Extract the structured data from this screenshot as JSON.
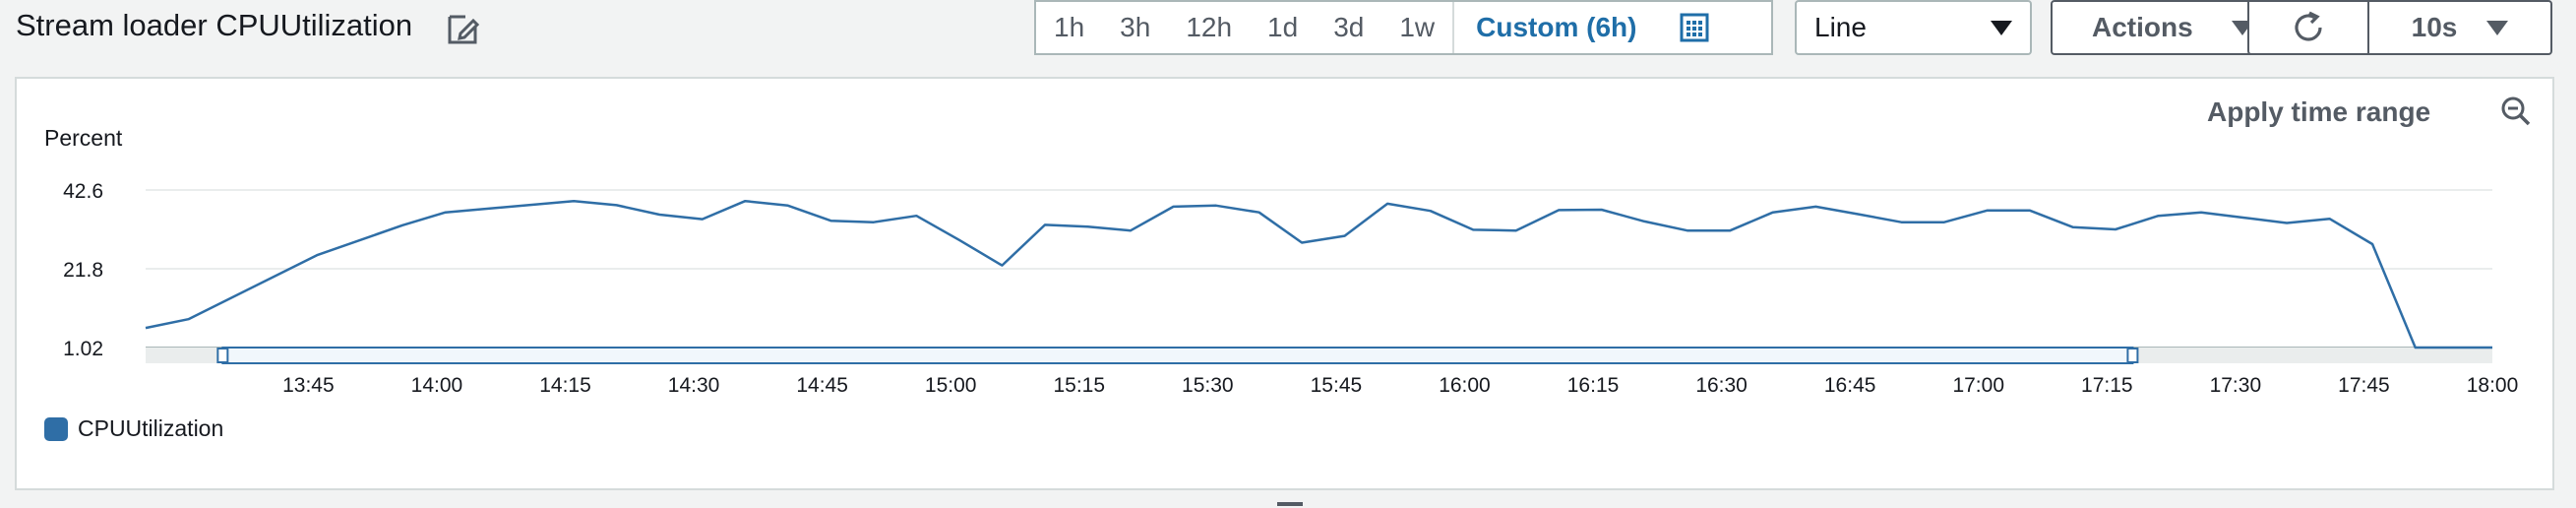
{
  "widget": {
    "title": "Stream loader CPUUtilization"
  },
  "time_range": {
    "options": [
      "1h",
      "3h",
      "12h",
      "1d",
      "3d",
      "1w"
    ],
    "custom_label": "Custom (6h)",
    "selected": "Custom (6h)"
  },
  "toolbar": {
    "chart_type_value": "Line",
    "actions_label": "Actions",
    "refresh_interval_value": "10s"
  },
  "panel": {
    "apply_range_label": "Apply time range"
  },
  "icons": {
    "edit": "edit-icon",
    "calendar": "calendar-icon",
    "refresh": "refresh-icon",
    "zoom_out": "zoom-out-icon",
    "dropdown": "caret-down-icon"
  },
  "colors": {
    "series": "#2f6ea6",
    "accent": "#1f6ea8",
    "selection": "#2f6ea6"
  },
  "chart_data": {
    "type": "line",
    "ylabel": "Percent",
    "y_ticks": [
      "42.6",
      "21.8",
      "1.02"
    ],
    "ylim": [
      1.02,
      42.6
    ],
    "xlim": [
      "13:26",
      "18:00"
    ],
    "x_ticks": [
      "13:45",
      "14:00",
      "14:15",
      "14:30",
      "14:45",
      "15:00",
      "15:15",
      "15:30",
      "15:45",
      "16:00",
      "16:15",
      "16:30",
      "16:45",
      "17:00",
      "17:15",
      "17:30",
      "17:45",
      "18:00"
    ],
    "legend_position": "bottom-left",
    "grid": true,
    "selection_range": [
      "13:35",
      "17:18"
    ],
    "series": [
      {
        "name": "CPUUtilization",
        "x": [
          "13:26",
          "13:31",
          "13:46",
          "13:56",
          "14:01",
          "14:16",
          "14:21",
          "14:26",
          "14:31",
          "14:36",
          "14:41",
          "14:46",
          "14:51",
          "14:56",
          "15:01",
          "15:06",
          "15:11",
          "15:16",
          "15:21",
          "15:26",
          "15:31",
          "15:36",
          "15:41",
          "15:46",
          "15:51",
          "15:56",
          "16:01",
          "16:06",
          "16:11",
          "16:16",
          "16:21",
          "16:26",
          "16:31",
          "16:36",
          "16:41",
          "16:46",
          "16:51",
          "16:56",
          "17:01",
          "17:06",
          "17:11",
          "17:16",
          "17:21",
          "17:26",
          "17:31",
          "17:36",
          "17:41",
          "17:46",
          "17:51",
          "17:56",
          "18:00"
        ],
        "values": [
          6.2,
          8.5,
          25.4,
          33.3,
          36.7,
          39.7,
          38.6,
          36.1,
          34.9,
          39.7,
          38.5,
          34.5,
          34.1,
          35.8,
          29.4,
          22.7,
          33.4,
          32.9,
          31.9,
          38.2,
          38.5,
          36.7,
          28.7,
          30.5,
          39.0,
          37.1,
          32.1,
          31.9,
          37.3,
          37.4,
          34.3,
          31.9,
          31.9,
          36.7,
          38.2,
          36.2,
          34.1,
          34.1,
          37.2,
          37.2,
          32.8,
          32.2,
          35.8,
          36.7,
          35.3,
          33.9,
          35.0,
          28.3,
          1.02,
          1.02,
          1.02
        ]
      }
    ]
  }
}
